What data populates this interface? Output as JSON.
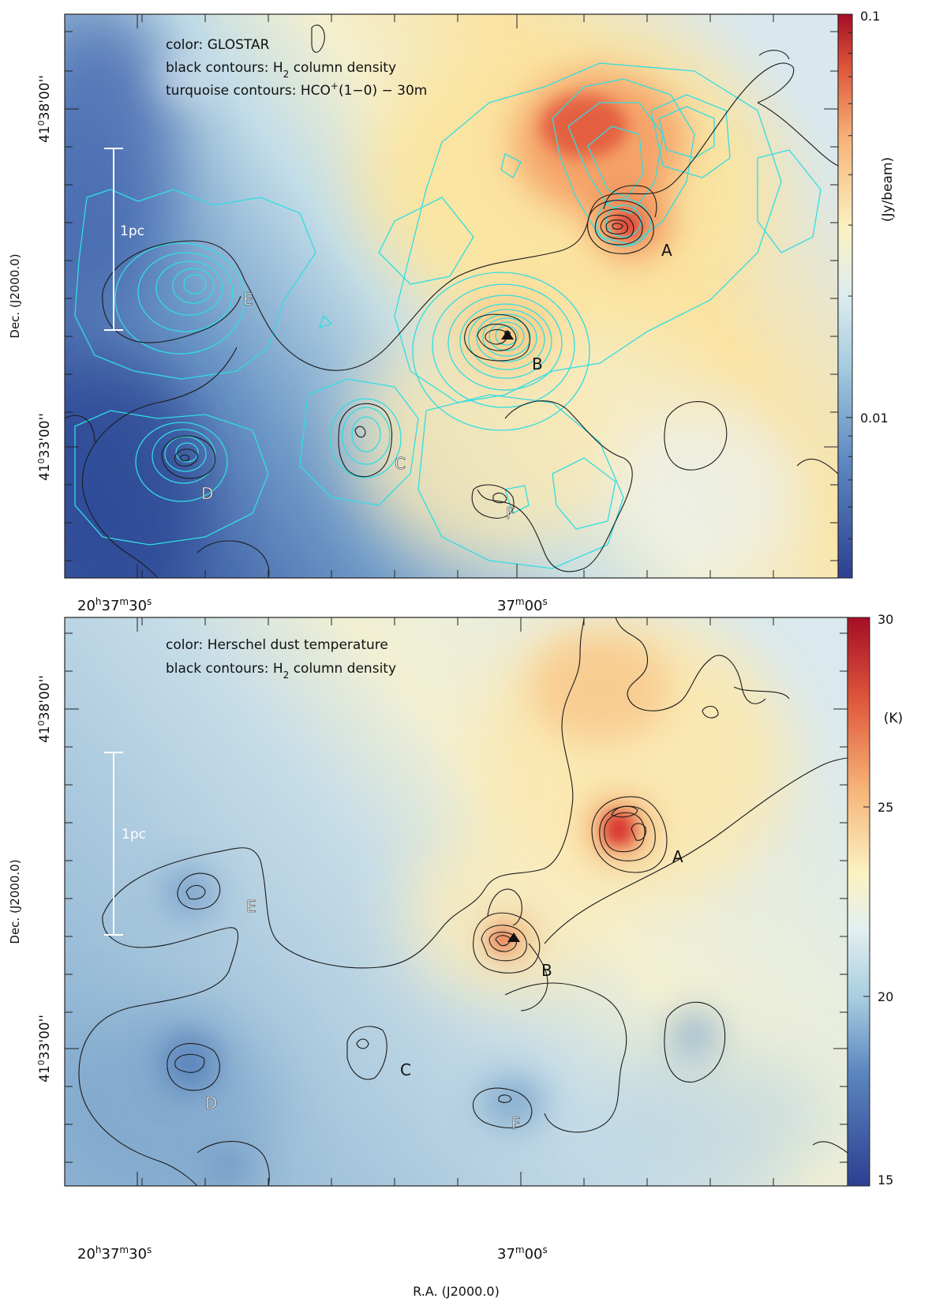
{
  "chart_data": [
    {
      "type": "heatmap",
      "panel": "top",
      "legend_lines": [
        {
          "prefix": "color: GLOSTAR"
        },
        {
          "prefix": "black contours: H",
          "sub": "2",
          "suffix": " column density"
        },
        {
          "prefix": "turquoise contours: HCO",
          "sup": "+",
          "suffix": "(1−0) − 30m"
        }
      ],
      "colorbar": {
        "label": "(Jy/beam)",
        "scale": "log",
        "range": [
          0.004,
          0.1
        ],
        "ticks": [
          {
            "value": 0.1,
            "label": "0.1"
          },
          {
            "value": 0.01,
            "label": "0.01"
          }
        ]
      },
      "ylabel": "Dec. (J2000.0)",
      "yticks": [
        {
          "deg": "41",
          "min": "38",
          "sec": "00"
        },
        {
          "deg": "41",
          "min": "33",
          "sec": "00"
        }
      ],
      "xticks": [
        {
          "h": "20",
          "m": "37",
          "s": "30"
        },
        {
          "m": "37",
          "s": "00"
        }
      ],
      "scale_bar": "1pc",
      "sources": [
        {
          "id": "A",
          "label": "A"
        },
        {
          "id": "B",
          "label": "B"
        },
        {
          "id": "C",
          "label": "C"
        },
        {
          "id": "D",
          "label": "D"
        },
        {
          "id": "E",
          "label": "E"
        },
        {
          "id": "F",
          "label": "F"
        }
      ]
    },
    {
      "type": "heatmap",
      "panel": "bottom",
      "legend_lines": [
        {
          "prefix": "color: Herschel dust temperature"
        },
        {
          "prefix": "black contours: H",
          "sub": "2",
          "suffix": " column density"
        }
      ],
      "colorbar": {
        "label": "(K)",
        "scale": "linear",
        "range": [
          15,
          30
        ],
        "ticks": [
          {
            "value": 30,
            "label": "30"
          },
          {
            "value": 25,
            "label": "25"
          },
          {
            "value": 20,
            "label": "20"
          },
          {
            "value": 15,
            "label": "15"
          }
        ]
      },
      "ylabel": "Dec. (J2000.0)",
      "xlabel": "R.A. (J2000.0)",
      "yticks": [
        {
          "deg": "41",
          "min": "38",
          "sec": "00"
        },
        {
          "deg": "41",
          "min": "33",
          "sec": "00"
        }
      ],
      "xticks": [
        {
          "h": "20",
          "m": "37",
          "s": "30"
        },
        {
          "m": "37",
          "s": "00"
        }
      ],
      "scale_bar": "1pc",
      "sources": [
        {
          "id": "A",
          "label": "A"
        },
        {
          "id": "B",
          "label": "B"
        },
        {
          "id": "C",
          "label": "C"
        },
        {
          "id": "D",
          "label": "D"
        },
        {
          "id": "E",
          "label": "E"
        },
        {
          "id": "F",
          "label": "F"
        }
      ]
    }
  ]
}
